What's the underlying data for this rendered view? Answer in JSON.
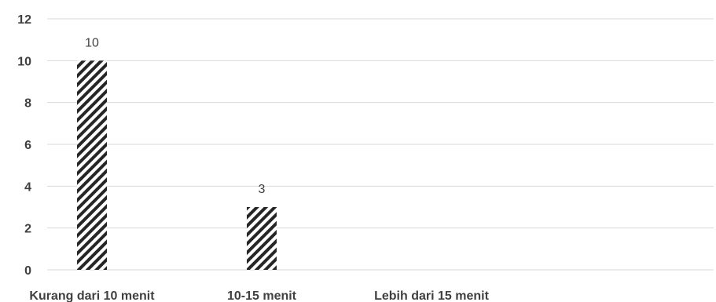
{
  "chart_data": {
    "type": "bar",
    "categories": [
      "Kurang dari 10 menit",
      "10-15 menit",
      "Lebih dari 15 menit"
    ],
    "values": [
      10,
      3,
      0
    ],
    "data_labels": [
      "10",
      "3",
      ""
    ],
    "title": "",
    "xlabel": "",
    "ylabel": "",
    "ylim": [
      0,
      12
    ],
    "yticks": [
      0,
      2,
      4,
      6,
      8,
      10,
      12
    ],
    "grid": true,
    "bar_fill": "diagonal-hatch",
    "colors": {
      "bar_stripe": "#262626",
      "bar_background": "#ffffff",
      "grid": "#d9d9d9",
      "text": "#404040"
    }
  }
}
